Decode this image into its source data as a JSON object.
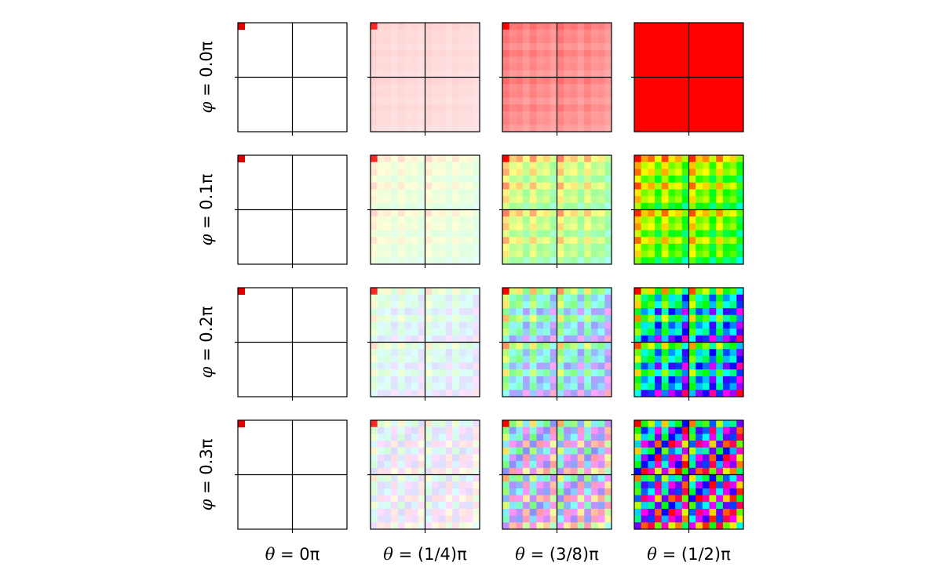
{
  "chart_data": {
    "type": "heatmap",
    "title": "",
    "layout": "grid 4 rows x 4 columns",
    "cell_grid": "16x16 blocks per panel",
    "row_labels": [
      {
        "sym": "φ",
        "rest": " = 0.0π"
      },
      {
        "sym": "φ",
        "rest": " = 0.1π"
      },
      {
        "sym": "φ",
        "rest": " = 0.2π"
      },
      {
        "sym": "φ",
        "rest": " = 0.3π"
      }
    ],
    "col_labels": [
      {
        "sym": "θ",
        "rest": " = 0π"
      },
      {
        "sym": "θ",
        "rest": " = (1/4)π"
      },
      {
        "sym": "θ",
        "rest": " = (3/8)π"
      },
      {
        "sym": "θ",
        "rest": " = (1/2)π"
      }
    ],
    "phi_values": [
      0.0,
      0.1,
      0.2,
      0.3
    ],
    "theta_values": [
      0,
      0.25,
      0.375,
      0.5
    ],
    "color_encoding": "hue from phase (φ), saturation from θ; θ = 0 white except top-left cell red",
    "crosshair": "black lines through panel center",
    "colors": {
      "frame": "#000000",
      "background": "#ffffff",
      "accent": "#ff0000"
    }
  }
}
